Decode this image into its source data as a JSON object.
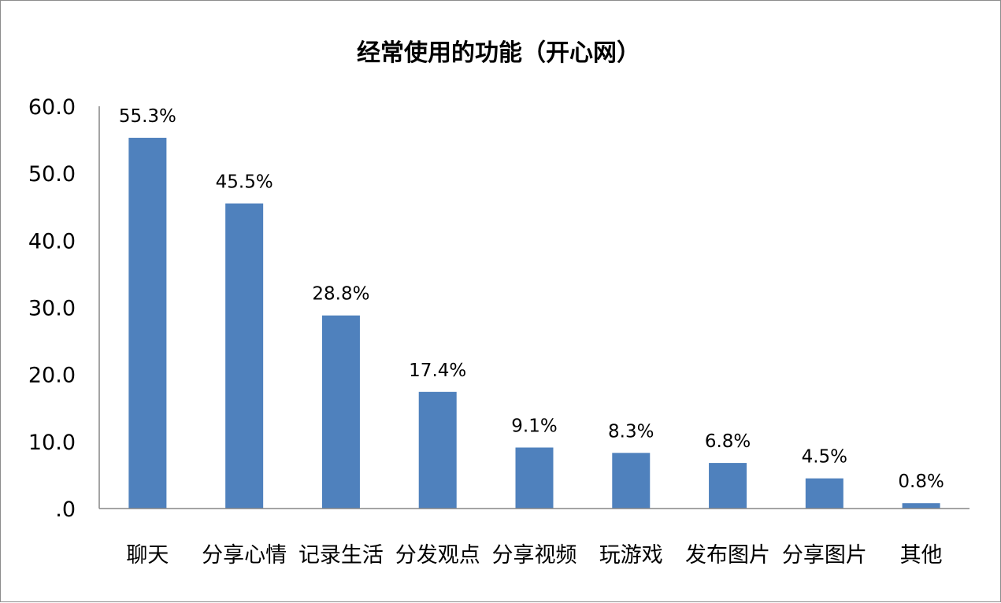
{
  "chart_data": {
    "type": "bar",
    "title": "经常使用的功能（开心网）",
    "categories": [
      "聊天",
      "分享心情",
      "记录生活",
      "分发观点",
      "分享视频",
      "玩游戏",
      "发布图片",
      "分享图片",
      "其他"
    ],
    "values": [
      55.3,
      45.5,
      28.8,
      17.4,
      9.1,
      8.3,
      6.8,
      4.5,
      0.8
    ],
    "data_labels": [
      "55.3%",
      "45.5%",
      "28.8%",
      "17.4%",
      "9.1%",
      "8.3%",
      "6.8%",
      "4.5%",
      "0.8%"
    ],
    "y_ticks": [
      ".0",
      "10.0",
      "20.0",
      "30.0",
      "40.0",
      "50.0",
      "60.0"
    ],
    "ylim": [
      0,
      60
    ],
    "xlabel": "",
    "ylabel": "",
    "grid": false,
    "legend": "none",
    "bar_color": "#4f81bd"
  }
}
